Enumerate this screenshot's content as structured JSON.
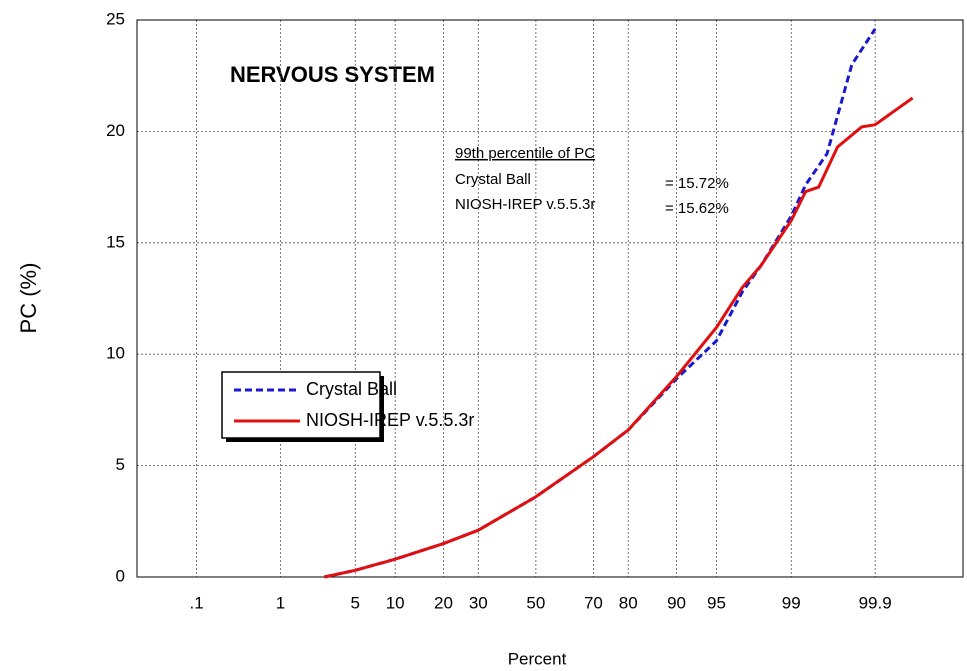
{
  "chart_data": {
    "type": "line",
    "title": "NERVOUS SYSTEM",
    "xlabel": "Percent",
    "ylabel": "PC (%)",
    "xscale": "probability",
    "xlim": [
      0.014,
      99.995
    ],
    "xticks": [
      {
        "value": 0.1,
        "label": ".1"
      },
      1,
      5,
      10,
      20,
      30,
      50,
      70,
      80,
      90,
      95,
      99,
      99.9
    ],
    "ylim": [
      0,
      25
    ],
    "yticks": [
      0,
      5,
      10,
      15,
      20,
      25
    ],
    "grid": true,
    "legend": "left",
    "annotation": {
      "heading": "99th percentile of PC",
      "rows": [
        [
          "Crystal Ball",
          "= 15.72%"
        ],
        [
          "NIOSH-IREP v.5.5.3r",
          "= 15.62%"
        ]
      ]
    },
    "series": [
      {
        "name": "Crystal Ball",
        "color": "#1a1acc",
        "dashed": true,
        "x": [
          2.7,
          5,
          10,
          20,
          30,
          50,
          70,
          80,
          90,
          95,
          97,
          98,
          99,
          99.3,
          99.6,
          99.8,
          99.9
        ],
        "values": [
          0,
          0.3,
          0.8,
          1.5,
          2.1,
          3.6,
          5.4,
          6.6,
          8.9,
          10.6,
          12.8,
          14,
          16.2,
          17.6,
          19,
          23,
          24.6
        ]
      },
      {
        "name": "NIOSH-IREP v.5.5.3r",
        "color": "#e01010",
        "dashed": false,
        "x": [
          2.7,
          5,
          10,
          20,
          30,
          50,
          70,
          80,
          90,
          95,
          97,
          98,
          99,
          99.3,
          99.5,
          99.7,
          99.85,
          99.9,
          99.97
        ],
        "values": [
          0,
          0.3,
          0.8,
          1.5,
          2.1,
          3.6,
          5.4,
          6.6,
          9,
          11.2,
          13,
          14,
          16,
          17.3,
          17.5,
          19.3,
          20.2,
          20.3,
          21.5
        ]
      }
    ]
  }
}
